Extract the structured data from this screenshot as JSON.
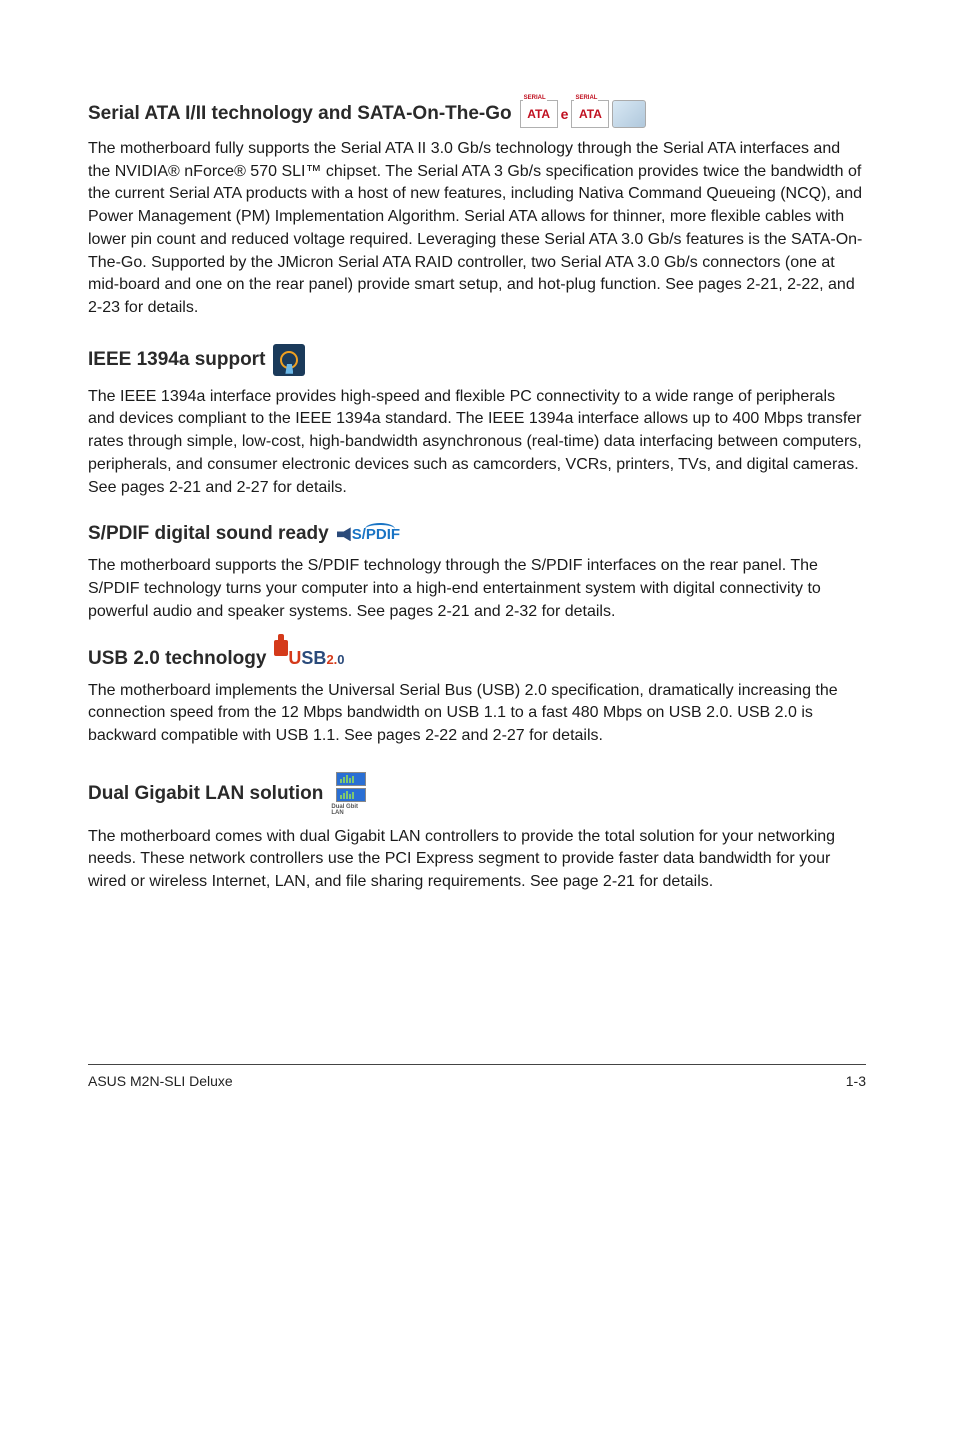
{
  "sections": {
    "sata": {
      "heading": "Serial ATA I/II technology and SATA-On-The-Go",
      "body": "The motherboard fully supports the Serial ATA II 3.0 Gb/s technology through the Serial ATA interfaces and the NVIDIA®  nForce®  570 SLI™ chipset. The Serial ATA 3 Gb/s specification provides twice the bandwidth of the current Serial ATA products with a host of new features, including Nativa Command Queueing (NCQ), and Power Management (PM) Implementation Algorithm. Serial ATA allows for thinner, more flexible cables with lower pin count and reduced voltage required. Leveraging these Serial ATA 3.0 Gb/s features is the SATA-On-The-Go. Supported by the JMicron Serial ATA RAID controller, two Serial ATA 3.0 Gb/s connectors (one at mid-board and one on the rear panel) provide smart setup, and hot-plug function. See pages 2-21, 2-22, and 2-23 for details."
    },
    "ieee": {
      "heading": "IEEE 1394a support",
      "body": "The IEEE 1394a interface provides high-speed and flexible PC connectivity to a wide range of peripherals and devices compliant to the IEEE 1394a standard. The IEEE 1394a interface allows up to 400 Mbps transfer rates through simple, low-cost, high-bandwidth asynchronous (real-time) data interfacing between computers, peripherals, and consumer electronic devices such as camcorders, VCRs, printers, TVs, and digital cameras. See pages 2-21 and 2-27 for details."
    },
    "spdif": {
      "heading": "S/PDIF digital sound ready",
      "logo_text": "S/PDIF",
      "body": "The motherboard supports the S/PDIF technology through the S/PDIF interfaces on the rear panel. The S/PDIF technology turns your computer into a high-end entertainment system with digital connectivity to powerful audio and speaker systems. See pages 2-21 and 2-32 for details."
    },
    "usb": {
      "heading": "USB 2.0 technology",
      "body": "The motherboard implements the Universal Serial Bus (USB) 2.0 specification, dramatically increasing the connection speed from the 12 Mbps bandwidth on USB 1.1 to a fast 480 Mbps on USB 2.0. USB 2.0 is backward compatible with USB 1.1. See pages 2-22 and 2-27 for details."
    },
    "lan": {
      "heading": "Dual Gigabit LAN solution",
      "icon_caption": "Dual Gbit LAN",
      "body": "The motherboard comes with dual Gigabit LAN controllers to provide the  total solution for your networking needs. These network controllers use the PCI Express segment to provide faster data bandwidth for your wired or wireless Internet, LAN, and file sharing requirements. See page 2-21 for details."
    }
  },
  "footer": {
    "left": "ASUS M2N-SLI Deluxe",
    "right": "1-3"
  },
  "icons": {
    "ata_text": "ATA",
    "e_text": "e"
  },
  "colors": {
    "heading": "#2a2a2a",
    "body": "#1a1a1a",
    "spdif_blue": "#1974c4",
    "usb_red": "#d43a1a",
    "usb_blue": "#2a4a7a"
  }
}
